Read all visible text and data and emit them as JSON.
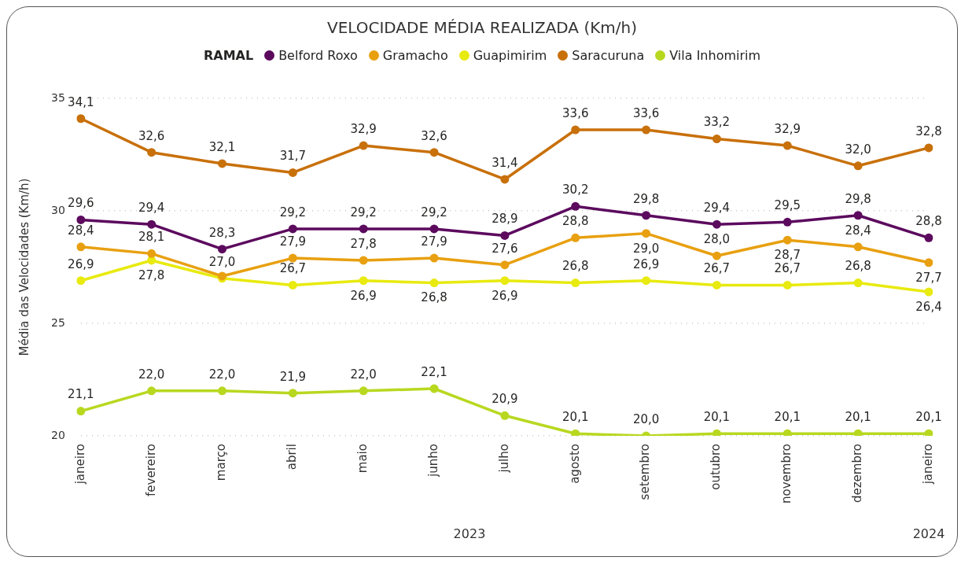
{
  "chart_data": {
    "type": "line",
    "title": "VELOCIDADE MÉDIA REALIZADA (Km/h)",
    "ylabel": "Média das Velocidades (Km/h)",
    "legend_title": "RAMAL",
    "legend": "top",
    "grid": "y",
    "marker": "circle",
    "line_style": "solid",
    "categories": [
      "janeiro",
      "fevereiro",
      "março",
      "abril",
      "maio",
      "junho",
      "julho",
      "agosto",
      "setembro",
      "outubro",
      "novembro",
      "dezembro",
      "janeiro"
    ],
    "annotations": [
      "2023",
      "2024"
    ],
    "ylim": [
      20,
      35
    ],
    "yticks": [
      20,
      25,
      30,
      35
    ],
    "series": [
      {
        "name": "Belford Roxo",
        "color": "#5c0a5e",
        "values": [
          29.6,
          29.4,
          28.3,
          29.2,
          29.2,
          29.2,
          28.9,
          30.2,
          29.8,
          29.4,
          29.5,
          29.8,
          28.8
        ],
        "value_labels": [
          "29,6",
          "29,4",
          "28,3",
          "29,2",
          "29,2",
          "29,2",
          "28,9",
          "30,2",
          "29,8",
          "29,4",
          "29,5",
          "29,8",
          "28,8"
        ]
      },
      {
        "name": "Gramacho",
        "color": "#e8a010",
        "values": [
          28.4,
          28.1,
          27.1,
          27.9,
          27.8,
          27.9,
          27.6,
          28.8,
          29.0,
          28.0,
          28.7,
          28.4,
          27.7
        ],
        "value_labels": [
          "28,4",
          "28,1",
          null,
          "27,9",
          "27,8",
          "27,9",
          "27,6",
          "28,8",
          "29,0",
          "28,0",
          "28,7",
          "28,4",
          "27,7"
        ]
      },
      {
        "name": "Guapimirim",
        "color": "#e8ea10",
        "values": [
          26.9,
          27.8,
          27.0,
          26.7,
          26.9,
          26.8,
          26.9,
          26.8,
          26.9,
          26.7,
          26.7,
          26.8,
          26.4
        ],
        "value_labels": [
          "26,9",
          "27,8",
          "27,0",
          "26,7",
          "26,9",
          "26,8",
          "26,9",
          "26,8",
          "26,9",
          "26,7",
          "26,7",
          "26,8",
          "26,4"
        ]
      },
      {
        "name": "Saracuruna",
        "color": "#c8700a",
        "values": [
          34.1,
          32.6,
          32.1,
          31.7,
          32.9,
          32.6,
          31.4,
          33.6,
          33.6,
          33.2,
          32.9,
          32.0,
          32.8
        ],
        "value_labels": [
          "34,1",
          "32,6",
          "32,1",
          "31,7",
          "32,9",
          "32,6",
          "31,4",
          "33,6",
          "33,6",
          "33,2",
          "32,9",
          "32,0",
          "32,8"
        ]
      },
      {
        "name": "Vila Inhomirim",
        "color": "#b8d820",
        "values": [
          21.1,
          22.0,
          22.0,
          21.9,
          22.0,
          22.1,
          20.9,
          20.1,
          20.0,
          20.1,
          20.1,
          20.1,
          20.1
        ],
        "value_labels": [
          "21,1",
          "22,0",
          "22,0",
          "21,9",
          "22,0",
          "22,1",
          "20,9",
          "20,1",
          "20,0",
          "20,1",
          "20,1",
          "20,1",
          "20,1"
        ]
      }
    ]
  }
}
